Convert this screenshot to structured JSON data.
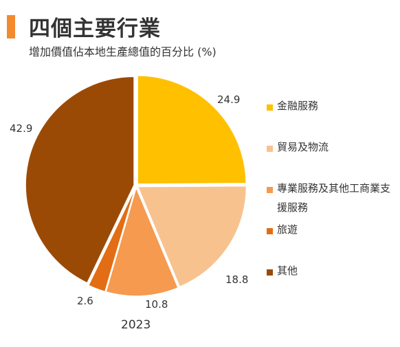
{
  "header": {
    "title": "四個主要行業",
    "subtitle": "增加價值佔本地生產總值的百分比 (%)",
    "accent_color": "#F28A2E"
  },
  "chart_data": {
    "type": "pie",
    "year": "2023",
    "legend_position": "right",
    "slices": [
      {
        "label": "金融服務",
        "value": 24.9,
        "value_label": "24.9",
        "color": "#FFC000"
      },
      {
        "label": "貿易及物流",
        "value": 18.8,
        "value_label": "18.8",
        "color": "#F8C28F"
      },
      {
        "label": "專業服務及其他工商業支援服務",
        "value": 10.8,
        "value_label": "10.8",
        "color": "#F59A4E"
      },
      {
        "label": "旅遊",
        "value": 2.6,
        "value_label": "2.6",
        "color": "#E26D14"
      },
      {
        "label": "其他",
        "value": 42.9,
        "value_label": "42.9",
        "color": "#9B4A06"
      }
    ]
  }
}
